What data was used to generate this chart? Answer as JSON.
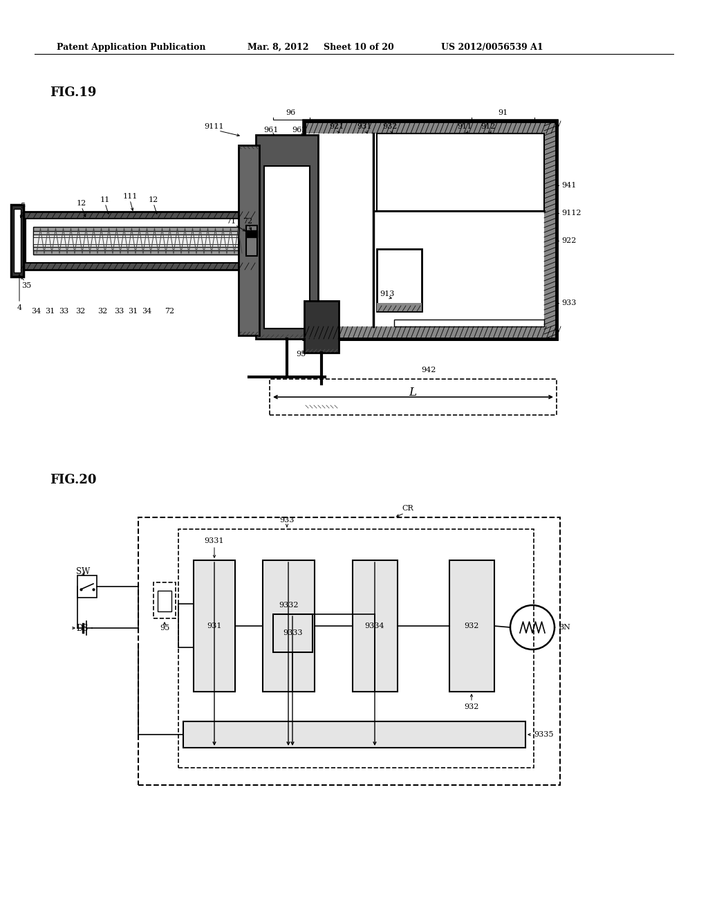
{
  "bg_color": "#ffffff",
  "header_text": "Patent Application Publication",
  "header_date": "Mar. 8, 2012",
  "header_sheet": "Sheet 10 of 20",
  "header_patent": "US 2012/0056539 A1",
  "fig19_label": "FIG.19",
  "fig20_label": "FIG.20"
}
